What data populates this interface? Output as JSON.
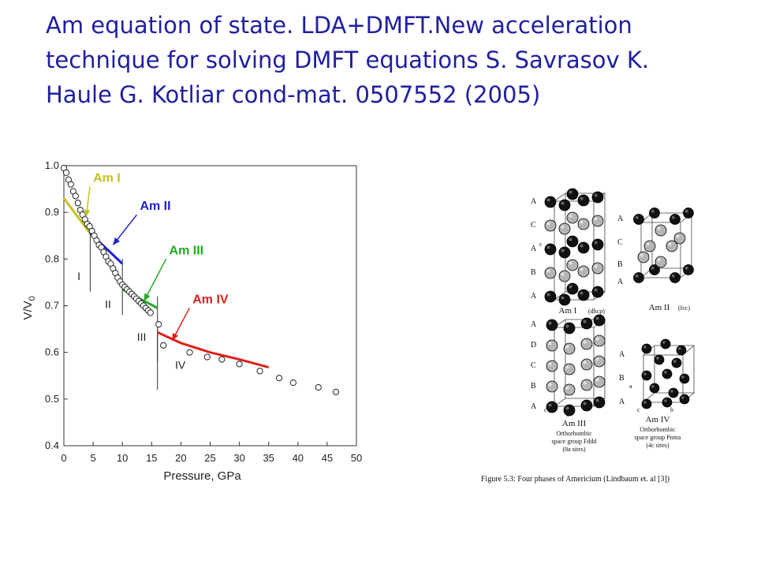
{
  "slide": {
    "title_lines": [
      "Am equation of state. LDA+DMFT.New acceleration",
      "technique for solving DMFT equations S.  Savrasov K.",
      "Haule G. Kotliar cond-mat. 0507552 (2005)"
    ]
  },
  "chart_data": {
    "type": "scatter",
    "xlabel": "Pressure, GPa",
    "ylabel": "V/V0",
    "ylabel_main": "V/V",
    "ylabel_sub": "0",
    "xlim": [
      0,
      50
    ],
    "ylim": [
      0.4,
      1.0
    ],
    "xticks": [
      0,
      5,
      10,
      15,
      20,
      25,
      30,
      35,
      40,
      45,
      50
    ],
    "yticks": [
      "0.4",
      "0.5",
      "0.6",
      "0.7",
      "0.8",
      "0.9",
      "1.0"
    ],
    "grid": false,
    "experimental_points": {
      "x": [
        0,
        0.4,
        0.8,
        1.2,
        1.6,
        2.0,
        2.4,
        2.8,
        3.2,
        3.6,
        4.0,
        4.4,
        4.8,
        5.2,
        5.6,
        6.0,
        6.4,
        6.8,
        7.2,
        7.6,
        8.0,
        8.4,
        8.8,
        9.2,
        9.6,
        10.0,
        10.4,
        10.8,
        11.2,
        11.6,
        12.0,
        12.4,
        12.8,
        13.2,
        13.6,
        14.0,
        14.4,
        14.8,
        16.2,
        17.0,
        21.5,
        24.5,
        27.0,
        30.0,
        33.5,
        36.8,
        39.2,
        43.5,
        46.5
      ],
      "y": [
        0.995,
        0.985,
        0.97,
        0.96,
        0.945,
        0.935,
        0.92,
        0.905,
        0.895,
        0.885,
        0.875,
        0.87,
        0.86,
        0.85,
        0.84,
        0.83,
        0.825,
        0.815,
        0.805,
        0.795,
        0.79,
        0.78,
        0.77,
        0.76,
        0.752,
        0.745,
        0.74,
        0.735,
        0.73,
        0.725,
        0.72,
        0.715,
        0.71,
        0.705,
        0.7,
        0.695,
        0.69,
        0.685,
        0.66,
        0.615,
        0.6,
        0.59,
        0.585,
        0.575,
        0.56,
        0.545,
        0.535,
        0.525,
        0.515
      ]
    },
    "phase_curves": [
      {
        "name": "Am I",
        "color": "#c8c21e",
        "x": [
          0,
          4.5
        ],
        "y": [
          0.93,
          0.855
        ]
      },
      {
        "name": "Am II",
        "color": "#1f1fd6",
        "x": [
          4.5,
          10.0
        ],
        "y": [
          0.855,
          0.79
        ]
      },
      {
        "name": "Am III",
        "color": "#22aa22",
        "x": [
          10.0,
          16.0
        ],
        "y": [
          0.735,
          0.695
        ]
      },
      {
        "name": "Am IV",
        "color": "#e0201a",
        "x": [
          16.0,
          20.0,
          25.0,
          30.0,
          35.0
        ],
        "y": [
          0.643,
          0.62,
          0.6,
          0.585,
          0.568
        ]
      }
    ],
    "phase_boundaries": [
      {
        "x": 4.5,
        "y_top": 0.86,
        "y_bottom": 0.73,
        "label": "I",
        "label_x": 2.3,
        "label_y": 0.755
      },
      {
        "x": 10.0,
        "y_top": 0.8,
        "y_bottom": 0.68,
        "label": "II",
        "label_x": 7.0,
        "label_y": 0.695
      },
      {
        "x": 16.0,
        "y_top": 0.72,
        "y_bottom": 0.58,
        "label": "III",
        "label_x": 12.5,
        "label_y": 0.625
      },
      {
        "x": 16.0,
        "y_top": 0.65,
        "y_bottom": 0.52,
        "label": "IV",
        "label_x": 19.0,
        "label_y": 0.565
      }
    ],
    "annotations": [
      {
        "text": "Am I",
        "color": "#c8c21e",
        "text_x": 5.0,
        "text_y": 0.965,
        "arrow_to_x": 3.8,
        "arrow_to_y": 0.89
      },
      {
        "text": "Am II",
        "color": "#1f1fd6",
        "text_x": 13.0,
        "text_y": 0.905,
        "arrow_to_x": 8.4,
        "arrow_to_y": 0.83
      },
      {
        "text": "Am III",
        "color": "#22aa22",
        "text_x": 18.0,
        "text_y": 0.81,
        "arrow_to_x": 13.7,
        "arrow_to_y": 0.71
      },
      {
        "text": "Am IV",
        "color": "#e0201a",
        "text_x": 22.0,
        "text_y": 0.705,
        "arrow_to_x": 18.5,
        "arrow_to_y": 0.625
      }
    ]
  },
  "phases_figure": {
    "caption": "Figure 5.3: Four phases of Americium (Lindbaum et. al [3])",
    "panels": [
      {
        "name": "Am I",
        "note": "(dhcp)",
        "stacking": [
          "A",
          "C",
          "A",
          "B",
          "A"
        ],
        "c_label": "c",
        "a_label": "a"
      },
      {
        "name": "Am II",
        "note": "(fcc)",
        "stacking": [
          "A",
          "C",
          "B",
          "A"
        ]
      },
      {
        "name": "Am III",
        "note": "Orthorhombic space group Fddd (8a sites)",
        "note_lines": [
          "Orthorhombic",
          "space group Fddd",
          "(8a sites)"
        ],
        "stacking": [
          "A",
          "D",
          "C",
          "B",
          "A"
        ],
        "c_label": "c",
        "b_label": "b"
      },
      {
        "name": "Am IV",
        "note": "Orthorhombic space group Pnma (4c sites)",
        "note_lines": [
          "Orthorhombic",
          "space group Pnma",
          "(4c sites)"
        ],
        "stacking": [
          "A",
          "B",
          "A"
        ],
        "a_label": "a",
        "b_label": "b",
        "c_label": "c"
      }
    ]
  }
}
